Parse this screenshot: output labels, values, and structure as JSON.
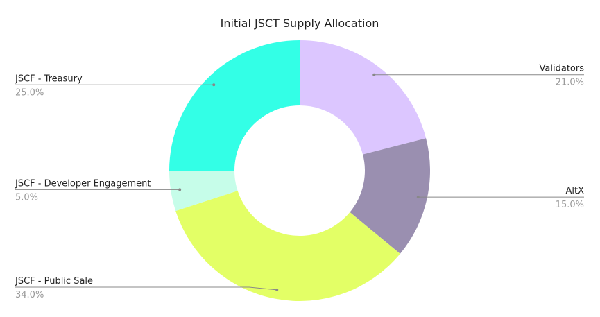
{
  "chart_data": {
    "type": "donut",
    "title": "Initial JSCT Supply Allocation",
    "categories": [
      "Validators",
      "AltX",
      "JSCF - Public Sale",
      "JSCF - Developer Engagement",
      "JSCF - Treasury"
    ],
    "values": [
      21,
      15,
      34,
      5,
      25
    ],
    "value_labels": [
      "21.0%",
      "15.0%",
      "34.0%",
      "5.0%",
      "25.0%"
    ],
    "colors": [
      "#dcc6ff",
      "#9a8fb0",
      "#e3ff66",
      "#c6fde9",
      "#33ffe6"
    ]
  }
}
